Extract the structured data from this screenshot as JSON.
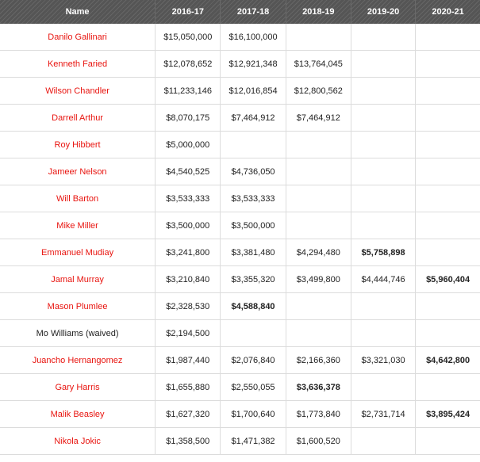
{
  "colors": {
    "header_bg": "#555555",
    "name_red": "#e8140f",
    "default": "#222222",
    "team_option": "#1f8fc2",
    "early_termination": "#9012a6",
    "player_option_green": "#2a8f1e",
    "qualifying_orange": "#e0400c",
    "waived_gray": "#8a8a8a"
  },
  "table": {
    "headers": [
      "Name",
      "2016-17",
      "2017-18",
      "2018-19",
      "2019-20",
      "2020-21"
    ],
    "rows": [
      {
        "name": "Danilo Gallinari",
        "name_color": "red",
        "cells": [
          {
            "text": "$15,050,000",
            "style": "default"
          },
          {
            "text": "$16,100,000",
            "style": "team"
          },
          {
            "text": "",
            "style": "default"
          },
          {
            "text": "",
            "style": "default"
          },
          {
            "text": "",
            "style": "default"
          }
        ]
      },
      {
        "name": "Kenneth Faried",
        "name_color": "red",
        "cells": [
          {
            "text": "$12,078,652",
            "style": "default"
          },
          {
            "text": "$12,921,348",
            "style": "default"
          },
          {
            "text": "$13,764,045",
            "style": "default"
          },
          {
            "text": "",
            "style": "default"
          },
          {
            "text": "",
            "style": "default"
          }
        ]
      },
      {
        "name": "Wilson Chandler",
        "name_color": "red",
        "cells": [
          {
            "text": "$11,233,146",
            "style": "default"
          },
          {
            "text": "$12,016,854",
            "style": "default"
          },
          {
            "text": "$12,800,562",
            "style": "team"
          },
          {
            "text": "",
            "style": "default"
          },
          {
            "text": "",
            "style": "default"
          }
        ]
      },
      {
        "name": "Darrell Arthur",
        "name_color": "red",
        "cells": [
          {
            "text": "$8,070,175",
            "style": "default"
          },
          {
            "text": "$7,464,912",
            "style": "default"
          },
          {
            "text": "$7,464,912",
            "style": "team"
          },
          {
            "text": "",
            "style": "default"
          },
          {
            "text": "",
            "style": "default"
          }
        ]
      },
      {
        "name": "Roy Hibbert",
        "name_color": "red",
        "cells": [
          {
            "text": "$5,000,000",
            "style": "default"
          },
          {
            "text": "",
            "style": "default"
          },
          {
            "text": "",
            "style": "default"
          },
          {
            "text": "",
            "style": "default"
          },
          {
            "text": "",
            "style": "default"
          }
        ]
      },
      {
        "name": "Jameer Nelson",
        "name_color": "red",
        "cells": [
          {
            "text": "$4,540,525",
            "style": "default"
          },
          {
            "text": "$4,736,050",
            "style": "default"
          },
          {
            "text": "",
            "style": "default"
          },
          {
            "text": "",
            "style": "default"
          },
          {
            "text": "",
            "style": "default"
          }
        ]
      },
      {
        "name": "Will Barton",
        "name_color": "red",
        "cells": [
          {
            "text": "$3,533,333",
            "style": "default"
          },
          {
            "text": "$3,533,333",
            "style": "default"
          },
          {
            "text": "",
            "style": "default"
          },
          {
            "text": "",
            "style": "default"
          },
          {
            "text": "",
            "style": "default"
          }
        ]
      },
      {
        "name": "Mike Miller",
        "name_color": "red",
        "cells": [
          {
            "text": "$3,500,000",
            "style": "default"
          },
          {
            "text": "$3,500,000",
            "style": "qual"
          },
          {
            "text": "",
            "style": "default"
          },
          {
            "text": "",
            "style": "default"
          },
          {
            "text": "",
            "style": "default"
          }
        ]
      },
      {
        "name": "Emmanuel Mudiay",
        "name_color": "red",
        "cells": [
          {
            "text": "$3,241,800",
            "style": "default"
          },
          {
            "text": "$3,381,480",
            "style": "default"
          },
          {
            "text": "$4,294,480",
            "style": "early"
          },
          {
            "text": "$5,758,898",
            "style": "player"
          },
          {
            "text": "",
            "style": "default"
          }
        ]
      },
      {
        "name": "Jamal Murray",
        "name_color": "red",
        "cells": [
          {
            "text": "$3,210,840",
            "style": "default"
          },
          {
            "text": "$3,355,320",
            "style": "default"
          },
          {
            "text": "$3,499,800",
            "style": "early"
          },
          {
            "text": "$4,444,746",
            "style": "early"
          },
          {
            "text": "$5,960,404",
            "style": "player"
          }
        ]
      },
      {
        "name": "Mason Plumlee",
        "name_color": "red",
        "cells": [
          {
            "text": "$2,328,530",
            "style": "default"
          },
          {
            "text": "$4,588,840",
            "style": "player"
          },
          {
            "text": "",
            "style": "default"
          },
          {
            "text": "",
            "style": "default"
          },
          {
            "text": "",
            "style": "default"
          }
        ]
      },
      {
        "name": "Mo Williams (waived)",
        "name_color": "black",
        "cells": [
          {
            "text": "$2,194,500",
            "style": "dead"
          },
          {
            "text": "",
            "style": "default"
          },
          {
            "text": "",
            "style": "default"
          },
          {
            "text": "",
            "style": "default"
          },
          {
            "text": "",
            "style": "default"
          }
        ]
      },
      {
        "name": "Juancho Hernangomez",
        "name_color": "red",
        "cells": [
          {
            "text": "$1,987,440",
            "style": "default"
          },
          {
            "text": "$2,076,840",
            "style": "default"
          },
          {
            "text": "$2,166,360",
            "style": "early"
          },
          {
            "text": "$3,321,030",
            "style": "early"
          },
          {
            "text": "$4,642,800",
            "style": "player"
          }
        ]
      },
      {
        "name": "Gary Harris",
        "name_color": "red",
        "cells": [
          {
            "text": "$1,655,880",
            "style": "default"
          },
          {
            "text": "$2,550,055",
            "style": "default"
          },
          {
            "text": "$3,636,378",
            "style": "player"
          },
          {
            "text": "",
            "style": "default"
          },
          {
            "text": "",
            "style": "default"
          }
        ]
      },
      {
        "name": "Malik Beasley",
        "name_color": "red",
        "cells": [
          {
            "text": "$1,627,320",
            "style": "default"
          },
          {
            "text": "$1,700,640",
            "style": "default"
          },
          {
            "text": "$1,773,840",
            "style": "early"
          },
          {
            "text": "$2,731,714",
            "style": "early"
          },
          {
            "text": "$3,895,424",
            "style": "player"
          }
        ]
      },
      {
        "name": "Nikola Jokic",
        "name_color": "red",
        "cells": [
          {
            "text": "$1,358,500",
            "style": "default"
          },
          {
            "text": "$1,471,382",
            "style": "default"
          },
          {
            "text": "$1,600,520",
            "style": "early"
          },
          {
            "text": "",
            "style": "default"
          },
          {
            "text": "",
            "style": "default"
          }
        ]
      }
    ]
  }
}
